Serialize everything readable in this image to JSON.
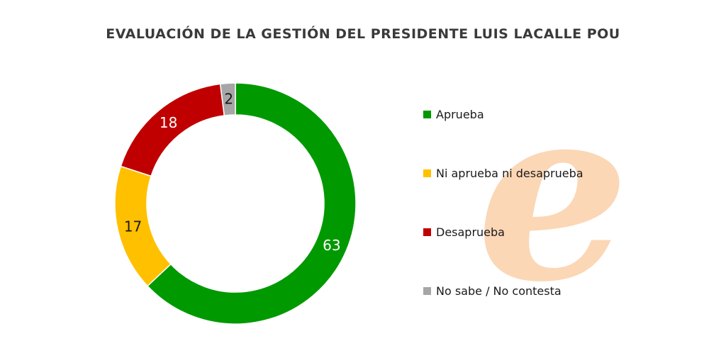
{
  "title": "EVALUACIÓN DE LA GESTIÓN DEL PRESIDENTE LUIS LACALLE POU",
  "watermark_letter": "e",
  "chart_data": {
    "type": "pie",
    "variant": "donut",
    "title": "EVALUACIÓN DE LA GESTIÓN DEL PRESIDENTE LUIS LACALLE POU",
    "categories": [
      "Aprueba",
      "Ni aprueba ni desaprueba",
      "Desaprueba",
      "No sabe / No contesta"
    ],
    "values": [
      63,
      17,
      18,
      2
    ],
    "labels": [
      "63",
      "17",
      "18",
      "2"
    ],
    "colors": [
      "#009900",
      "#ffc000",
      "#c00000",
      "#a6a6a6"
    ],
    "label_colors": [
      "#ffffff",
      "#1a1a1a",
      "#ffffff",
      "#1a1a1a"
    ],
    "legend_position": "right"
  }
}
